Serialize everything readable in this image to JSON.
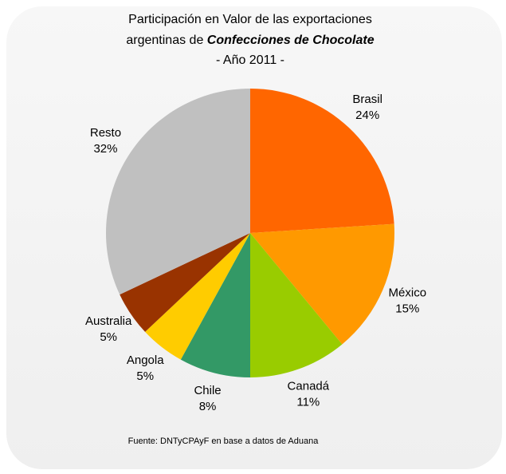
{
  "chart_data": {
    "type": "pie",
    "title": {
      "line1": "Participación en Valor de las exportaciones",
      "line2_prefix": "argentinas de",
      "line2_emphasis": "Confecciones de Chocolate",
      "line3": "- Año 2011 -"
    },
    "categories": [
      "Brasil",
      "México",
      "Canadá",
      "Chile",
      "Angola",
      "Australia",
      "Resto"
    ],
    "values": [
      24,
      15,
      11,
      8,
      5,
      5,
      32
    ],
    "value_labels": [
      "24%",
      "15%",
      "11%",
      "8%",
      "5%",
      "5%",
      "32%"
    ],
    "colors": [
      "#ff6600",
      "#ff9900",
      "#99cc00",
      "#339966",
      "#ffcc00",
      "#993300",
      "#c0c0c0"
    ],
    "source": "Fuente: DNTyCPAyF en base a datos de Aduana"
  }
}
